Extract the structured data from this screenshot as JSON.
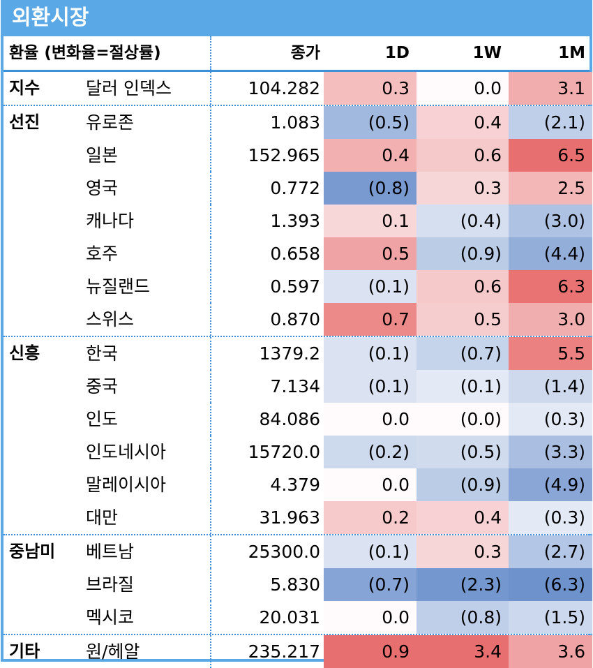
{
  "title": "외환시장",
  "header": {
    "label": "환율 (변화율=절상률)",
    "price": "종가",
    "d1": "1D",
    "w1": "1W",
    "m1": "1M"
  },
  "colors": {
    "frame": "#5BA8E6",
    "divider": "#3D8FDA",
    "positive": "#E86F6F",
    "negative": "#6A8FCB"
  },
  "rows": [
    {
      "group": "지수",
      "country": "달러 인덱스",
      "price": "104.282",
      "d1": "0.3",
      "w1": "0.0",
      "m1": "3.1",
      "d1v": 0.3,
      "w1v": 0.0,
      "m1v": 3.1
    },
    {
      "group": "선진",
      "country": "유로존",
      "price": "1.083",
      "d1": "(0.5)",
      "w1": "0.4",
      "m1": "(2.1)",
      "d1v": -0.5,
      "w1v": 0.4,
      "m1v": -2.1
    },
    {
      "group": "",
      "country": "일본",
      "price": "152.965",
      "d1": "0.4",
      "w1": "0.6",
      "m1": "6.5",
      "d1v": 0.4,
      "w1v": 0.6,
      "m1v": 6.5
    },
    {
      "group": "",
      "country": "영국",
      "price": "0.772",
      "d1": "(0.8)",
      "w1": "0.3",
      "m1": "2.5",
      "d1v": -0.8,
      "w1v": 0.3,
      "m1v": 2.5
    },
    {
      "group": "",
      "country": "캐나다",
      "price": "1.393",
      "d1": "0.1",
      "w1": "(0.4)",
      "m1": "(3.0)",
      "d1v": 0.1,
      "w1v": -0.4,
      "m1v": -3.0
    },
    {
      "group": "",
      "country": "호주",
      "price": "0.658",
      "d1": "0.5",
      "w1": "(0.9)",
      "m1": "(4.4)",
      "d1v": 0.5,
      "w1v": -0.9,
      "m1v": -4.4
    },
    {
      "group": "",
      "country": "뉴질랜드",
      "price": "0.597",
      "d1": "(0.1)",
      "w1": "0.6",
      "m1": "6.3",
      "d1v": -0.1,
      "w1v": 0.6,
      "m1v": 6.3
    },
    {
      "group": "",
      "country": "스위스",
      "price": "0.870",
      "d1": "0.7",
      "w1": "0.5",
      "m1": "3.0",
      "d1v": 0.7,
      "w1v": 0.5,
      "m1v": 3.0
    },
    {
      "group": "신흥",
      "country": "한국",
      "price": "1379.2",
      "d1": "(0.1)",
      "w1": "(0.7)",
      "m1": "5.5",
      "d1v": -0.1,
      "w1v": -0.7,
      "m1v": 5.5
    },
    {
      "group": "",
      "country": "중국",
      "price": "7.134",
      "d1": "(0.1)",
      "w1": "(0.1)",
      "m1": "(1.4)",
      "d1v": -0.1,
      "w1v": -0.1,
      "m1v": -1.4
    },
    {
      "group": "",
      "country": "인도",
      "price": "84.086",
      "d1": "0.0",
      "w1": "(0.0)",
      "m1": "(0.3)",
      "d1v": 0.0,
      "w1v": 0.0,
      "m1v": -0.3
    },
    {
      "group": "",
      "country": "인도네시아",
      "price": "15720.0",
      "d1": "(0.2)",
      "w1": "(0.5)",
      "m1": "(3.3)",
      "d1v": -0.2,
      "w1v": -0.5,
      "m1v": -3.3
    },
    {
      "group": "",
      "country": "말레이시아",
      "price": "4.379",
      "d1": "0.0",
      "w1": "(0.9)",
      "m1": "(4.9)",
      "d1v": 0.0,
      "w1v": -0.9,
      "m1v": -4.9
    },
    {
      "group": "",
      "country": "대만",
      "price": "31.963",
      "d1": "0.2",
      "w1": "0.4",
      "m1": "(0.3)",
      "d1v": 0.2,
      "w1v": 0.4,
      "m1v": -0.3
    },
    {
      "group": "중남미",
      "country": "베트남",
      "price": "25300.0",
      "d1": "(0.1)",
      "w1": "0.3",
      "m1": "(2.7)",
      "d1v": -0.1,
      "w1v": 0.3,
      "m1v": -2.7
    },
    {
      "group": "",
      "country": "브라질",
      "price": "5.830",
      "d1": "(0.7)",
      "w1": "(2.3)",
      "m1": "(6.3)",
      "d1v": -0.7,
      "w1v": -2.3,
      "m1v": -6.3
    },
    {
      "group": "",
      "country": "멕시코",
      "price": "20.031",
      "d1": "0.0",
      "w1": "(0.8)",
      "m1": "(1.5)",
      "d1v": 0.0,
      "w1v": -0.8,
      "m1v": -1.5
    },
    {
      "group": "기타",
      "country": "원/헤알",
      "price": "235.217",
      "d1": "0.9",
      "w1": "3.4",
      "m1": "3.6",
      "d1v": 0.9,
      "w1v": 3.4,
      "m1v": 3.6
    }
  ]
}
